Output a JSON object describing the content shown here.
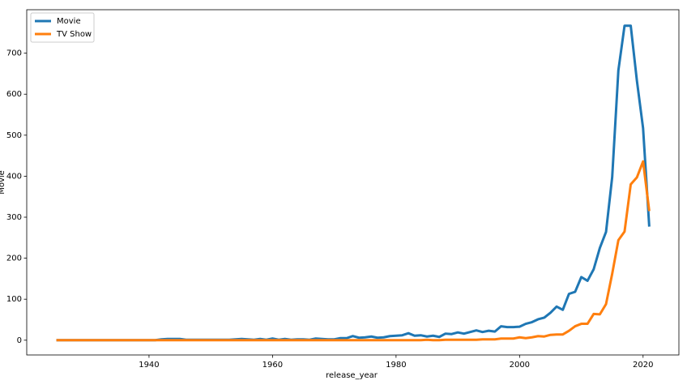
{
  "chart_data": {
    "type": "line",
    "xlabel": "release_year",
    "ylabel": "Movie",
    "x": [
      1925,
      1926,
      1927,
      1928,
      1929,
      1930,
      1931,
      1932,
      1933,
      1934,
      1935,
      1936,
      1937,
      1938,
      1939,
      1940,
      1941,
      1942,
      1943,
      1944,
      1945,
      1946,
      1947,
      1948,
      1949,
      1950,
      1951,
      1952,
      1953,
      1954,
      1955,
      1956,
      1957,
      1958,
      1959,
      1960,
      1961,
      1962,
      1963,
      1964,
      1965,
      1966,
      1967,
      1968,
      1969,
      1970,
      1971,
      1972,
      1973,
      1974,
      1975,
      1976,
      1977,
      1978,
      1979,
      1980,
      1981,
      1982,
      1983,
      1984,
      1985,
      1986,
      1987,
      1988,
      1989,
      1990,
      1991,
      1992,
      1993,
      1994,
      1995,
      1996,
      1997,
      1998,
      1999,
      2000,
      2001,
      2002,
      2003,
      2004,
      2005,
      2006,
      2007,
      2008,
      2009,
      2010,
      2011,
      2012,
      2013,
      2014,
      2015,
      2016,
      2017,
      2018,
      2019,
      2020,
      2021
    ],
    "series": [
      {
        "name": "Movie",
        "color": "#1f77b4",
        "values": [
          0,
          0,
          0,
          0,
          0,
          0,
          0,
          0,
          0,
          0,
          0,
          0,
          0,
          0,
          0,
          0,
          0,
          2,
          3,
          3,
          3,
          1,
          1,
          1,
          1,
          1,
          1,
          1,
          1,
          2,
          3,
          2,
          1,
          3,
          1,
          4,
          1,
          3,
          1,
          2,
          2,
          1,
          4,
          3,
          2,
          2,
          5,
          5,
          10,
          6,
          7,
          9,
          6,
          7,
          10,
          11,
          12,
          17,
          11,
          12,
          9,
          11,
          8,
          16,
          15,
          19,
          16,
          20,
          24,
          20,
          23,
          21,
          34,
          32,
          32,
          33,
          40,
          44,
          51,
          55,
          67,
          82,
          74,
          113,
          118,
          154,
          145,
          173,
          225,
          264,
          398,
          658,
          767,
          767,
          633,
          517,
          277
        ]
      },
      {
        "name": "TV Show",
        "color": "#ff7f0e",
        "values": [
          0,
          0,
          0,
          0,
          0,
          0,
          0,
          0,
          0,
          0,
          0,
          0,
          0,
          0,
          0,
          0,
          0,
          0,
          0,
          0,
          0,
          0,
          0,
          0,
          0,
          0,
          0,
          0,
          0,
          0,
          0,
          0,
          0,
          0,
          0,
          0,
          0,
          0,
          0,
          0,
          0,
          0,
          0,
          0,
          0,
          0,
          0,
          0,
          0,
          0,
          0,
          0,
          0,
          0,
          0,
          0,
          0,
          0,
          0,
          0,
          1,
          0,
          0,
          1,
          1,
          1,
          1,
          1,
          1,
          2,
          2,
          2,
          4,
          4,
          4,
          7,
          5,
          7,
          10,
          9,
          13,
          14,
          14,
          23,
          34,
          40,
          40,
          64,
          63,
          88,
          162,
          244,
          265,
          380,
          397,
          436,
          315
        ]
      }
    ],
    "xlim": [
      1920.2,
      2025.8
    ],
    "xticks": [
      1940,
      1960,
      1980,
      2000,
      2020
    ],
    "ylim": [
      -36,
      806
    ],
    "yticks": [
      0,
      100,
      200,
      300,
      400,
      500,
      600,
      700
    ],
    "legend": "upper left"
  }
}
